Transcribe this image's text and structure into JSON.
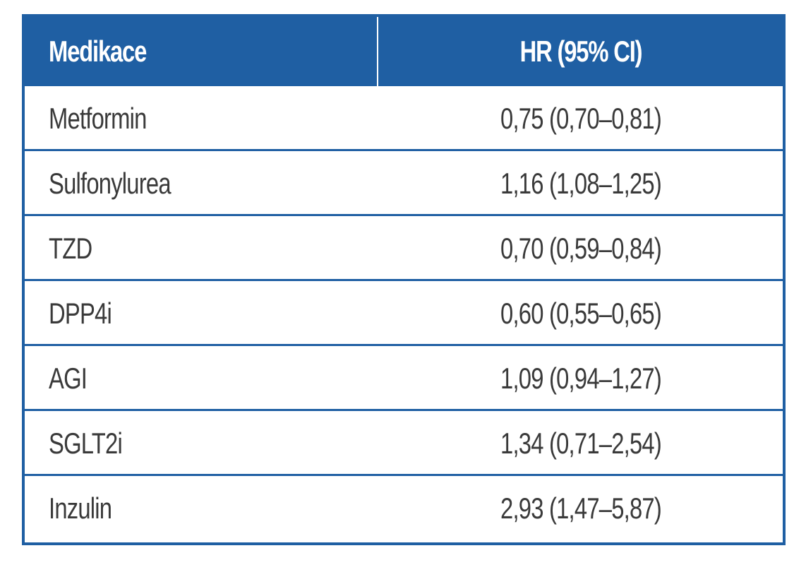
{
  "table": {
    "columns": [
      "Medikace",
      "HR (95% CI)"
    ],
    "rows": [
      {
        "medication": "Metformin",
        "hr": "0,75 (0,70–0,81)"
      },
      {
        "medication": "Sulfonylurea",
        "hr": "1,16 (1,08–1,25)"
      },
      {
        "medication": "TZD",
        "hr": "0,70 (0,59–0,84)"
      },
      {
        "medication": "DPP4i",
        "hr": "0,60 (0,55–0,65)"
      },
      {
        "medication": "AGI",
        "hr": "1,09 (0,94–1,27)"
      },
      {
        "medication": "SGLT2i",
        "hr": "1,34 (0,71–2,54)"
      },
      {
        "medication": "Inzulin",
        "hr": "2,93 (1,47–5,87)"
      }
    ]
  },
  "colors": {
    "header_bg": "#1f5fa3",
    "header_text": "#ffffff",
    "body_text": "#3a3a3a",
    "grid_line": "#1f5fa3"
  }
}
